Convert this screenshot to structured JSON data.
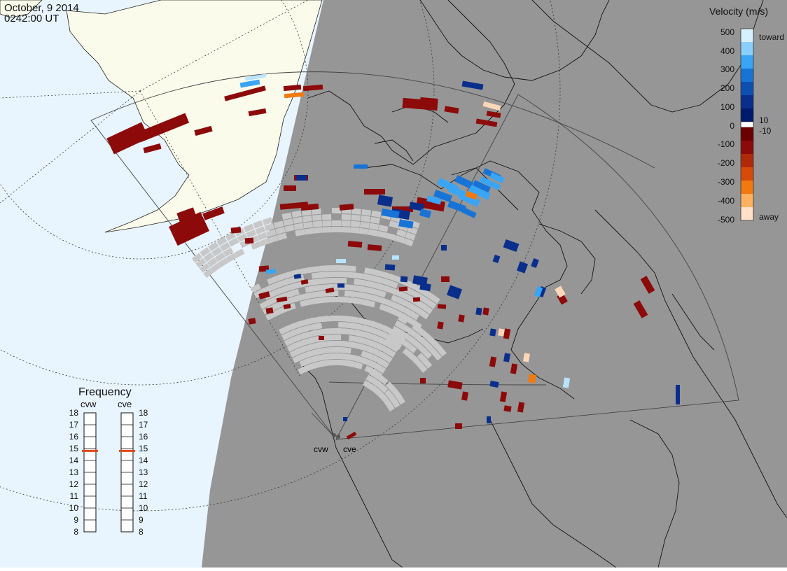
{
  "header": {
    "date": "October, 9 2014",
    "time": "0242:00 UT"
  },
  "velocity_legend": {
    "title": "Velocity (m/s)",
    "ticks": [
      "500",
      "400",
      "300",
      "200",
      "100",
      "10",
      "0",
      "-10",
      "-100",
      "-200",
      "-300",
      "-400",
      "-500"
    ],
    "top_label": "toward",
    "bottom_label": "away",
    "colors_toward": [
      "#d6f0ff",
      "#8ad0ff",
      "#3aa5f5",
      "#1774d6",
      "#0d4fb0",
      "#0a2e8c",
      "#001a6b"
    ],
    "colors_away": [
      "#6b0000",
      "#8c0a0a",
      "#b02a0a",
      "#d64a0a",
      "#f07a10",
      "#ffb060",
      "#ffe0c8"
    ],
    "zero_color": "#ffffff"
  },
  "frequency_panel": {
    "title": "Frequency",
    "radars": [
      {
        "name": "cvw",
        "freq_mhz": 14.8
      },
      {
        "name": "cve",
        "freq_mhz": 14.8
      }
    ],
    "scale": [
      "18",
      "17",
      "16",
      "15",
      "14",
      "13",
      "12",
      "11",
      "10",
      "9",
      "8"
    ],
    "marker_color": "#e04a1a"
  },
  "map": {
    "radar_sites": [
      "cvw",
      "cve"
    ],
    "night_shade_color": "#969696",
    "ocean_color": "#e8f5ff",
    "land_day_color": "#fbfbeb",
    "ground_scatter_color": "#c8c8c8"
  }
}
